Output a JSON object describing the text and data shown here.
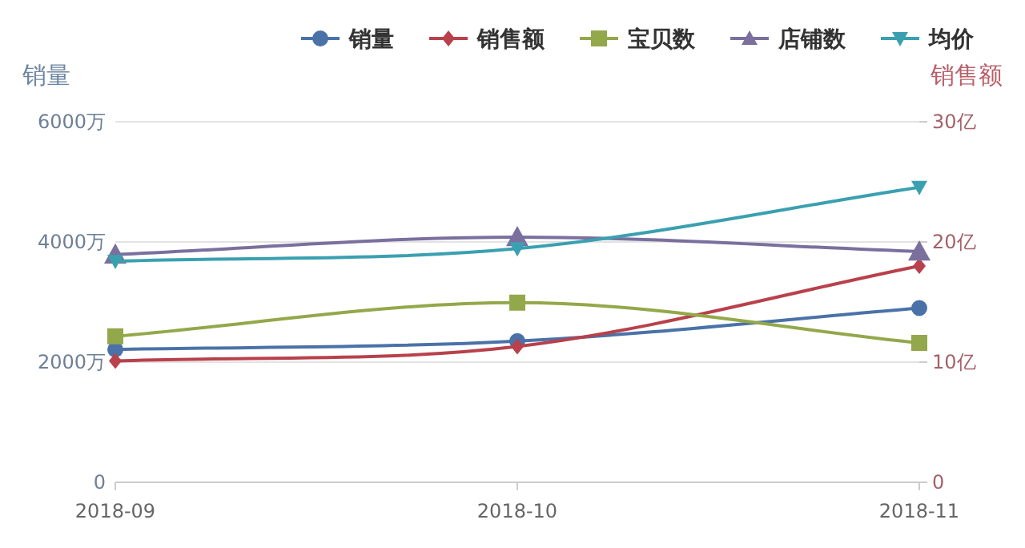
{
  "chart_data": {
    "type": "line",
    "ylabel": "销量",
    "y2label": "销售额",
    "categories": [
      "2018-09",
      "2018-10",
      "2018-11"
    ],
    "ylim": [
      0,
      6000
    ],
    "yticks": [
      0,
      {
        "value": 2000,
        "label": "2000万"
      },
      {
        "value": 4000,
        "label": "4000万"
      },
      {
        "value": 6000,
        "label": "6000万"
      }
    ],
    "y2lim": [
      0,
      30
    ],
    "y2ticks": [
      0,
      {
        "value": 10,
        "label": "10亿"
      },
      {
        "value": 20,
        "label": "20亿"
      },
      {
        "value": 30,
        "label": "30亿"
      }
    ],
    "grid": "y",
    "legend": "top",
    "line_style": "solid",
    "series": [
      {
        "name": "销量",
        "color": "#4a72a8",
        "marker": "circle",
        "values": [
          2210,
          2350,
          2900
        ]
      },
      {
        "name": "销售额",
        "color": "#b8414b",
        "marker": "diamond",
        "axis": "y2",
        "values": [
          10.1,
          11.3,
          18.0
        ]
      },
      {
        "name": "宝贝数",
        "color": "#93a84a",
        "marker": "square",
        "values": [
          2430,
          2990,
          2320
        ]
      },
      {
        "name": "店铺数",
        "color": "#7b6f9e",
        "marker": "triangle",
        "values": [
          3790,
          4080,
          3840
        ]
      },
      {
        "name": "均价",
        "color": "#3aa0b0",
        "marker": "triangle-down",
        "values": [
          3680,
          3890,
          4910
        ]
      }
    ]
  }
}
